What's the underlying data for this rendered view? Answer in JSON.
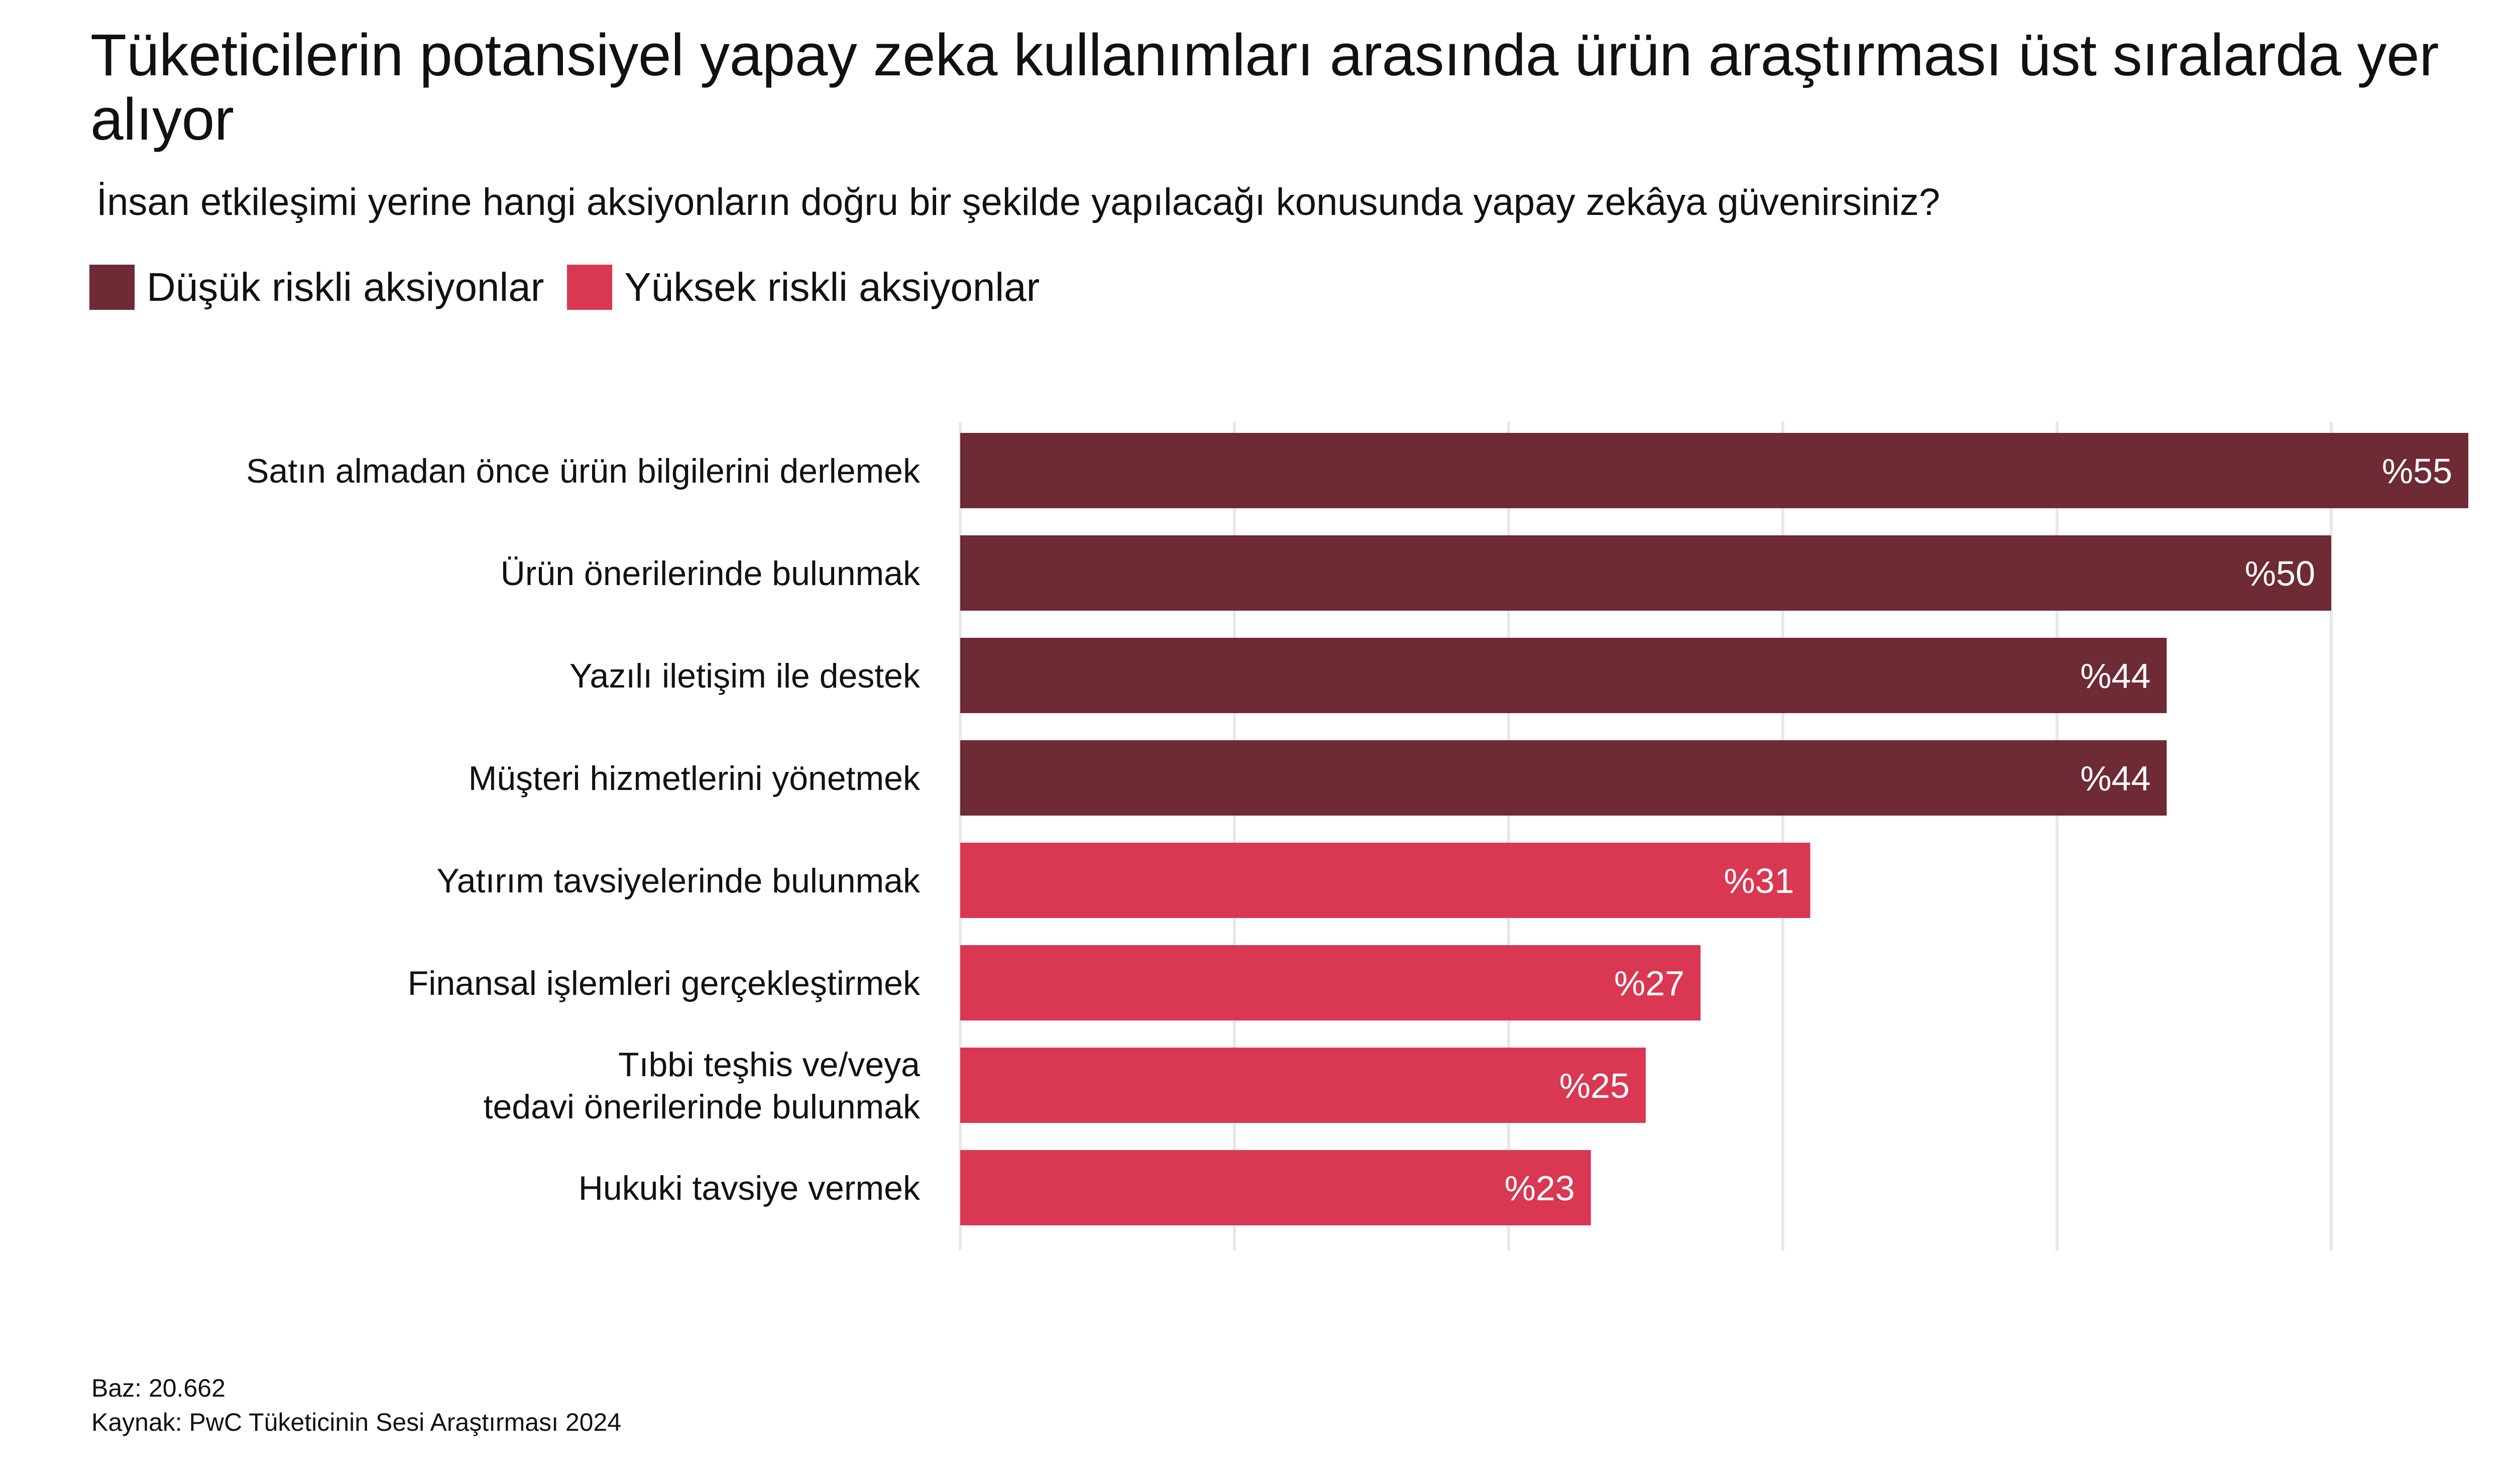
{
  "colors": {
    "low_risk": "#6E2A35",
    "high_risk": "#D93752",
    "grid": "#E8E8E8",
    "value_label": "#ffffff",
    "category_label": "#111111"
  },
  "chart_data": {
    "type": "bar",
    "orientation": "horizontal",
    "title": "Tüketicilerin potansiyel yapay zeka kullanımları arasında ürün araştırması üst sıralarda yer alıyor",
    "subtitle": "İnsan etkileşimi yerine hangi aksiyonların doğru bir şekilde yapılacağı konusunda yapay zekâya güvenirsiniz?",
    "legend_position": "top-left",
    "grid": true,
    "xlim": [
      0,
      55
    ],
    "grid_step": 10,
    "value_prefix": "%",
    "legend": [
      {
        "key": "low_risk",
        "label": "Düşük riskli aksiyonlar"
      },
      {
        "key": "high_risk",
        "label": "Yüksek riskli aksiyonlar"
      }
    ],
    "categories": [
      [
        "Satın almadan önce ürün bilgilerini derlemek"
      ],
      [
        "Ürün önerilerinde bulunmak"
      ],
      [
        "Yazılı iletişim ile destek"
      ],
      [
        "Müşteri hizmetlerini yönetmek"
      ],
      [
        "Yatırım tavsiyelerinde bulunmak"
      ],
      [
        "Finansal işlemleri gerçekleştirmek"
      ],
      [
        "Tıbbi teşhis ve/veya",
        "tedavi önerilerinde bulunmak"
      ],
      [
        "Hukuki tavsiye vermek"
      ]
    ],
    "values": [
      55,
      50,
      44,
      44,
      31,
      27,
      25,
      23
    ],
    "group": [
      "low_risk",
      "low_risk",
      "low_risk",
      "low_risk",
      "high_risk",
      "high_risk",
      "high_risk",
      "high_risk"
    ]
  },
  "footer": {
    "base": "Baz: 20.662",
    "source": "Kaynak: PwC Tüketicinin Sesi Araştırması 2024"
  }
}
